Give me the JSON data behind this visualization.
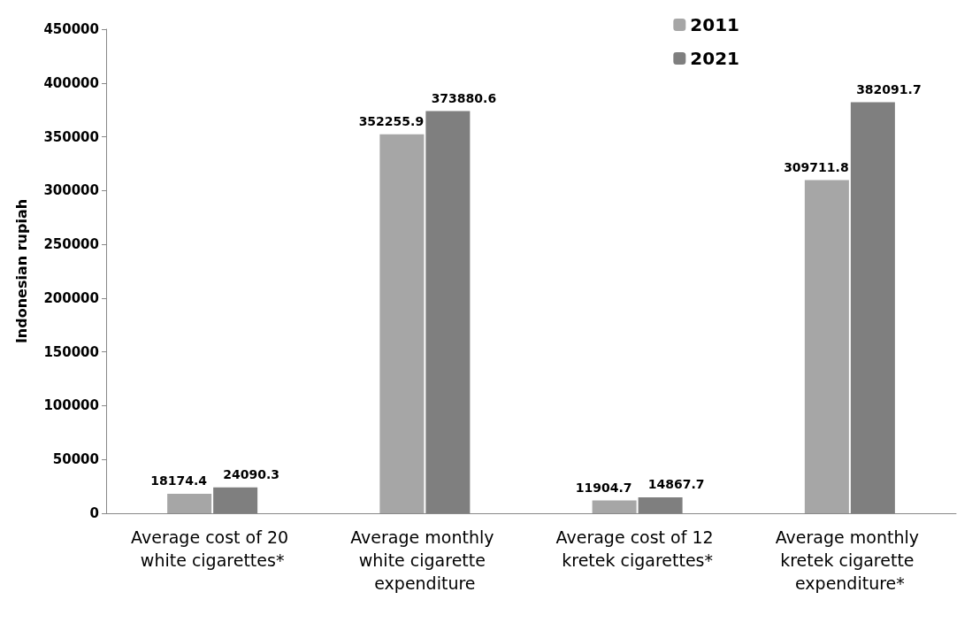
{
  "chart_data": {
    "type": "bar",
    "ylabel": "Indonesian rupiah",
    "categories": [
      "Average cost of 20 white cigarettes*",
      "Average monthly white cigarette expenditure",
      "Average cost of 12 kretek cigarettes*",
      "Average monthly kretek cigarette expenditure*"
    ],
    "series": [
      {
        "name": "2011",
        "color": "#a6a6a6",
        "values": [
          18174.4,
          352255.9,
          11904.7,
          309711.8
        ]
      },
      {
        "name": "2021",
        "color": "#7f7f7f",
        "values": [
          24090.3,
          373880.6,
          14867.7,
          382091.7
        ]
      }
    ],
    "ylim": [
      0,
      450000
    ],
    "yticks": [
      0,
      50000,
      100000,
      150000,
      200000,
      250000,
      300000,
      350000,
      400000,
      450000
    ],
    "data_labels": true,
    "legend": "top right",
    "grid": false
  }
}
